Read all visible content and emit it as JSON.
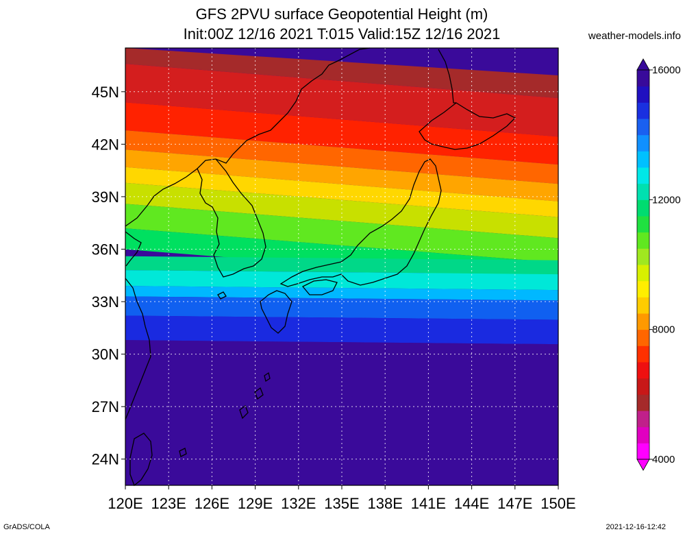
{
  "title": {
    "line1": "GFS 2PVU surface Geopotential Height (m)",
    "line2": "Init:00Z 12/16 2021 T:015 Valid:15Z 12/16 2021"
  },
  "site": "weather-models.info",
  "map": {
    "lon_range": [
      120,
      150
    ],
    "lat_range": [
      22.5,
      47.5
    ],
    "lat_ticks": [
      {
        "value": 45,
        "label": "45N"
      },
      {
        "value": 42,
        "label": "42N"
      },
      {
        "value": 39,
        "label": "39N"
      },
      {
        "value": 36,
        "label": "36N"
      },
      {
        "value": 33,
        "label": "33N"
      },
      {
        "value": 30,
        "label": "30N"
      },
      {
        "value": 27,
        "label": "27N"
      },
      {
        "value": 24,
        "label": "24N"
      }
    ],
    "lon_ticks": [
      {
        "value": 120,
        "label": "120E"
      },
      {
        "value": 123,
        "label": "123E"
      },
      {
        "value": 126,
        "label": "126E"
      },
      {
        "value": 129,
        "label": "129E"
      },
      {
        "value": 132,
        "label": "132E"
      },
      {
        "value": 135,
        "label": "135E"
      },
      {
        "value": 138,
        "label": "138E"
      },
      {
        "value": 141,
        "label": "141E"
      },
      {
        "value": 144,
        "label": "144E"
      },
      {
        "value": 147,
        "label": "147E"
      },
      {
        "value": 150,
        "label": "150E"
      }
    ],
    "field_bands": [
      {
        "lat": 47.5,
        "color": "#a52a2a"
      },
      {
        "lat": 46.2,
        "color": "#d41e1e"
      },
      {
        "lat": 44.0,
        "color": "#ff2200"
      },
      {
        "lat": 42.4,
        "color": "#ff6600"
      },
      {
        "lat": 41.3,
        "color": "#ffa500"
      },
      {
        "lat": 40.3,
        "color": "#ffd700"
      },
      {
        "lat": 39.4,
        "color": "#c8e000"
      },
      {
        "lat": 38.2,
        "color": "#60e820"
      },
      {
        "lat": 36.8,
        "color": "#00e060"
      },
      {
        "lat": 35.6,
        "color": "#00d888"
      },
      {
        "lat": 34.8,
        "color": "#00e8d8"
      },
      {
        "lat": 33.9,
        "color": "#00b8ff"
      },
      {
        "lat": 33.3,
        "color": "#1060f0"
      },
      {
        "lat": 32.2,
        "color": "#1a2ae0"
      },
      {
        "lat": 30.8,
        "color": "#3a0a9a"
      }
    ]
  },
  "colorbar": {
    "min": 4000,
    "max": 16000,
    "labels": [
      {
        "value": 16000,
        "label": "16000"
      },
      {
        "value": 12000,
        "label": "12000"
      },
      {
        "value": 8000,
        "label": "8000"
      },
      {
        "value": 4000,
        "label": "4000"
      }
    ],
    "colors": [
      "#ff00ff",
      "#e000c0",
      "#c0208a",
      "#a52a2a",
      "#c81818",
      "#ee1010",
      "#ff3000",
      "#ff6600",
      "#ff9900",
      "#ffcc00",
      "#ffee00",
      "#d8f000",
      "#a0e820",
      "#60e820",
      "#20e040",
      "#00dc70",
      "#00e0b0",
      "#00e8e8",
      "#00c0ff",
      "#1090ff",
      "#1a60f0",
      "#1a30e0",
      "#2010c0",
      "#380a9a"
    ],
    "top_arrow": "#380a9a",
    "bottom_arrow": "#ff00ff"
  },
  "footer": {
    "left": "GrADS/COLA",
    "right": "2021-12-16-12:42"
  }
}
